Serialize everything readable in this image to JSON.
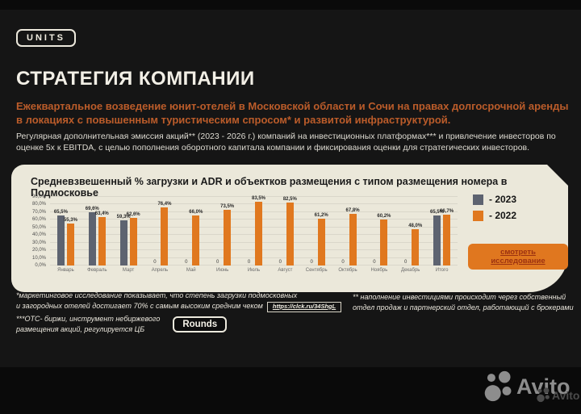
{
  "logo": {
    "text": "UNITS"
  },
  "header": {
    "title": "СТРАТЕГИЯ КОМПАНИИ",
    "lead": "Ежеквартальное возведение юнит-отелей в Московской области и Сочи на правах долгосрочной аренды в локациях с повышенным туристическим спросом* и развитой инфраструктурой.",
    "sub": "Регулярная дополнительная эмиссия акций** (2023 - 2026 г.) компаний на инвестиционных платформах*** и привлечение инвесторов по оценке 5х к EBITDA, с целью пополнения оборотного капитала компании и фиксирования оценки для стратегических инвесторов."
  },
  "chart_data": {
    "type": "bar",
    "title": "Средневзвешенный % загрузки и ADR и объектков размещения с типом размещения номера в Подмосковье",
    "categories": [
      "Январь",
      "Февраль",
      "Март",
      "Апрель",
      "Май",
      "Июнь",
      "Июль",
      "Август",
      "Сентябрь",
      "Октябрь",
      "Ноябрь",
      "Декабрь",
      "Итого"
    ],
    "series": [
      {
        "name": "2023",
        "color": "#5d6370",
        "values": [
          65.5,
          69.6,
          59.3,
          0,
          0,
          0,
          0,
          0,
          0,
          0,
          0,
          0,
          65.5
        ],
        "labels": [
          "65,5%",
          "69,6%",
          "59,3%",
          "0",
          "0",
          "0",
          "0",
          "0",
          "0",
          "0",
          "0",
          "0",
          "65,5%"
        ]
      },
      {
        "name": "2022",
        "color": "#e0781f",
        "values": [
          55.3,
          63.4,
          62.6,
          76.4,
          66.0,
          73.5,
          83.5,
          82.5,
          61.2,
          67.8,
          60.2,
          48.0,
          66.7
        ],
        "labels": [
          "55,3%",
          "63,4%",
          "62,6%",
          "76,4%",
          "66,0%",
          "73,5%",
          "83,5%",
          "82,5%",
          "61,2%",
          "67,8%",
          "60,2%",
          "48,0%",
          "66,7%"
        ]
      }
    ],
    "ylim": [
      0,
      90
    ],
    "ytick_step": 10,
    "grid": true,
    "legend_position": "right"
  },
  "legend": {
    "items": [
      {
        "label": "- 2023",
        "color": "#5d6370"
      },
      {
        "label": "- 2022",
        "color": "#e0781f"
      }
    ]
  },
  "cta": {
    "label": "смотреть исследование"
  },
  "footnotes": {
    "marketing": {
      "line1": "*маркетинговое исследование показывает, что степень загрузки подмосковных",
      "line2": "и загородных отелей достигает 70% с самым высоким средним чеком",
      "link": "https://clck.ru/34ShgL"
    },
    "otc": {
      "line1": "***OTC- биржи, инструмент небиржевого",
      "line2": "размещения акций, регулируется ЦБ",
      "badge": "Rounds"
    },
    "investors": {
      "line1": "** наполнение инвестициями происходит через собственный",
      "line2": "отдел продаж и партнерский отдел, работающий с брокерами"
    }
  },
  "watermark": {
    "text": "Avito",
    "text_small": "Avito"
  }
}
